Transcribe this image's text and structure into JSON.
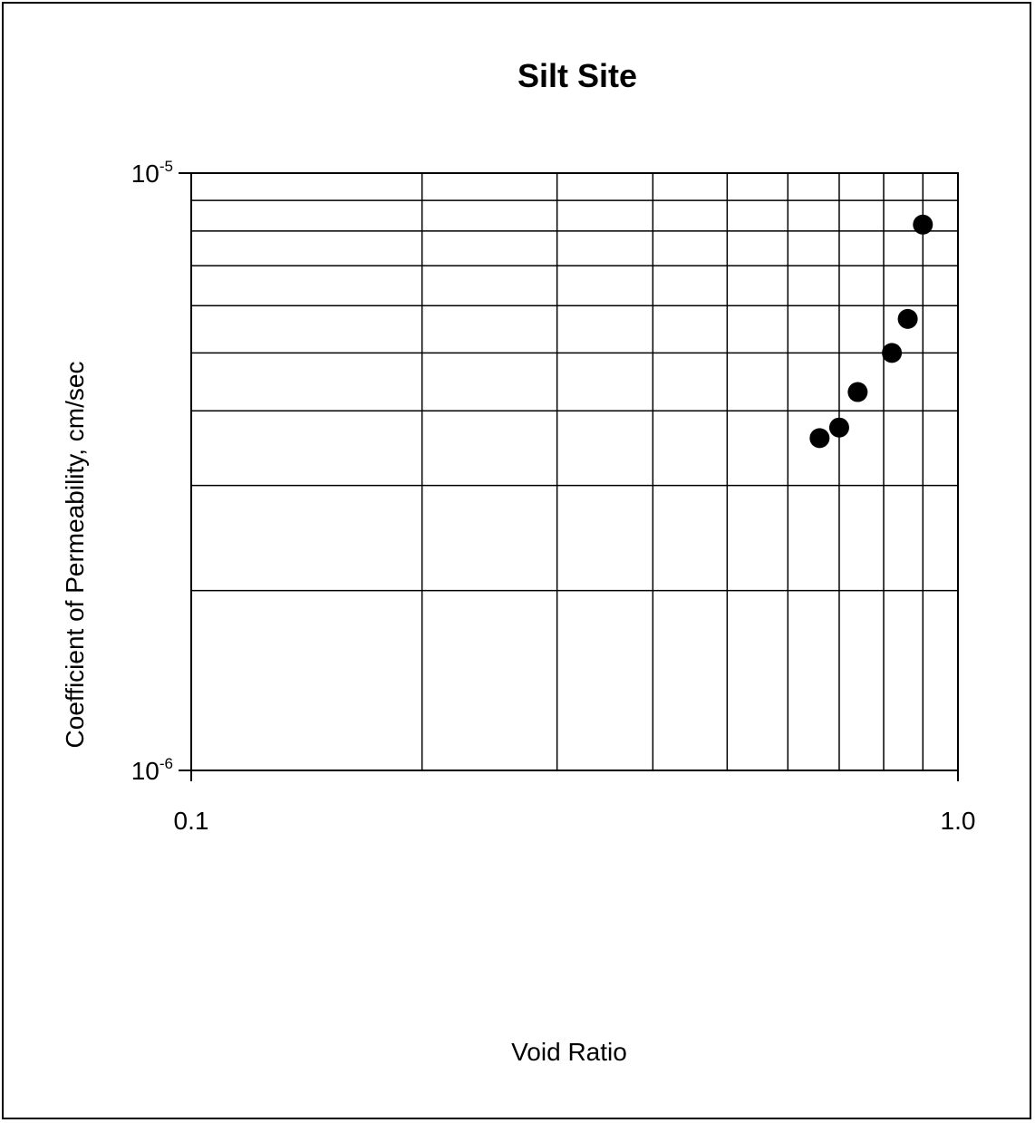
{
  "chart_data": {
    "type": "scatter",
    "title": "Silt Site",
    "xlabel": "Void Ratio",
    "ylabel": "Coefficient of Permeability, cm/sec",
    "x_scale": "log",
    "y_scale": "log",
    "xlim": [
      0.1,
      1.0
    ],
    "ylim": [
      1e-06,
      1e-05
    ],
    "grid": true,
    "x_ticks": [
      {
        "value": 0.1,
        "label": "0.1"
      },
      {
        "value": 1.0,
        "label": "1.0"
      }
    ],
    "y_ticks": [
      {
        "value": 1e-06,
        "base": "10",
        "exp": "-6"
      },
      {
        "value": 1e-05,
        "base": "10",
        "exp": "-5"
      }
    ],
    "x_gridlines": [
      0.2,
      0.3,
      0.4,
      0.5,
      0.6,
      0.7,
      0.8,
      0.9
    ],
    "y_gridlines": [
      2e-06,
      3e-06,
      4e-06,
      5e-06,
      6e-06,
      7e-06,
      8e-06,
      9e-06
    ],
    "marker_color": "#000000",
    "series": [
      {
        "x": [
          0.66,
          0.7,
          0.74,
          0.82,
          0.86,
          0.9
        ],
        "y": [
          3.6e-06,
          3.75e-06,
          4.3e-06,
          5e-06,
          5.7e-06,
          8.2e-06
        ]
      }
    ]
  }
}
